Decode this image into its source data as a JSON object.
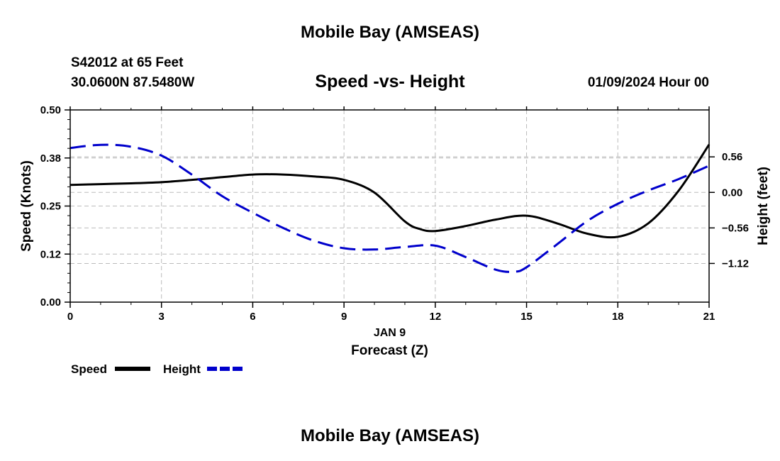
{
  "header": {
    "title": "Mobile Bay (AMSEAS)",
    "station": "S42012 at 65 Feet",
    "coords": "30.0600N  87.5480W",
    "datetime": "01/09/2024 Hour 00"
  },
  "footer": {
    "title": "Mobile Bay (AMSEAS)"
  },
  "legend": {
    "speed_label": "Speed",
    "height_label": "Height"
  },
  "chart_data": {
    "type": "line",
    "title": "Speed -vs- Height",
    "xlabel": "Forecast (Z)",
    "date_label": "JAN 9",
    "ylabel": "Speed (Knots)",
    "y2label": "Height (feet)",
    "xlim": [
      0,
      21
    ],
    "ylim": [
      0,
      0.5
    ],
    "y2lim": [
      -1.73,
      1.3
    ],
    "x_ticks": [
      "0",
      "3",
      "6",
      "9",
      "12",
      "15",
      "18",
      "21"
    ],
    "x_tick_values": [
      0,
      3,
      6,
      9,
      12,
      15,
      18,
      21
    ],
    "y_ticks": [
      "0.00",
      "0.12",
      "0.25",
      "0.38",
      "0.50"
    ],
    "y_tick_values": [
      0,
      0.125,
      0.25,
      0.375,
      0.5
    ],
    "y2_ticks": [
      "0.56",
      "0.00",
      "−0.56",
      "−1.12"
    ],
    "y2_tick_values": [
      0.56,
      0,
      -0.56,
      -1.12
    ],
    "grid": true,
    "series": [
      {
        "name": "Speed",
        "axis": "left",
        "color": "#000000",
        "dash": "solid",
        "x": [
          0,
          1,
          2,
          3,
          4,
          5,
          6,
          7,
          8,
          9,
          10,
          11,
          11.5,
          12,
          13,
          14,
          15,
          16,
          17,
          18,
          19,
          20,
          21
        ],
        "y": [
          0.305,
          0.307,
          0.309,
          0.312,
          0.318,
          0.325,
          0.332,
          0.332,
          0.327,
          0.318,
          0.285,
          0.21,
          0.19,
          0.185,
          0.198,
          0.215,
          0.225,
          0.205,
          0.178,
          0.17,
          0.205,
          0.29,
          0.41
        ]
      },
      {
        "name": "Height",
        "axis": "right",
        "color": "#0000cc",
        "dash": "dashed",
        "x": [
          0,
          1,
          2,
          3,
          4,
          5,
          6,
          7,
          8,
          9,
          10,
          11,
          12,
          13,
          14,
          14.6,
          15,
          16,
          17,
          18,
          19,
          20,
          21
        ],
        "y": [
          0.7,
          0.75,
          0.72,
          0.58,
          0.28,
          -0.06,
          -0.32,
          -0.56,
          -0.76,
          -0.88,
          -0.9,
          -0.86,
          -0.84,
          -1.02,
          -1.22,
          -1.25,
          -1.18,
          -0.82,
          -0.45,
          -0.18,
          0.03,
          0.21,
          0.42
        ]
      }
    ]
  }
}
